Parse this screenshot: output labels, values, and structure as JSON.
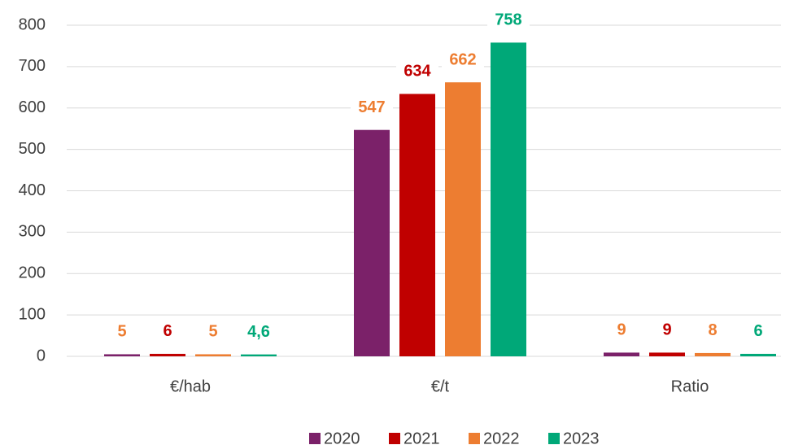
{
  "chart_data": {
    "type": "bar",
    "categories": [
      "€/hab",
      "€/t",
      "Ratio"
    ],
    "series": [
      {
        "name": "2020",
        "color": "#7b2169",
        "label_color": "#ed7d31",
        "values": [
          5,
          547,
          9
        ]
      },
      {
        "name": "2021",
        "color": "#c00000",
        "label_color": "#c00000",
        "values": [
          6,
          634,
          9
        ]
      },
      {
        "name": "2022",
        "color": "#ed7d31",
        "label_color": "#ed7d31",
        "values": [
          5,
          662,
          8
        ]
      },
      {
        "name": "2023",
        "color": "#00a878",
        "label_color": "#00a878",
        "values": [
          4.6,
          758,
          6
        ],
        "value_labels": [
          "4,6",
          "758",
          "6"
        ]
      }
    ],
    "ylim": [
      0,
      800
    ],
    "yticks": [
      0,
      100,
      200,
      300,
      400,
      500,
      600,
      700,
      800
    ],
    "grid": true,
    "legend": "bottom"
  }
}
